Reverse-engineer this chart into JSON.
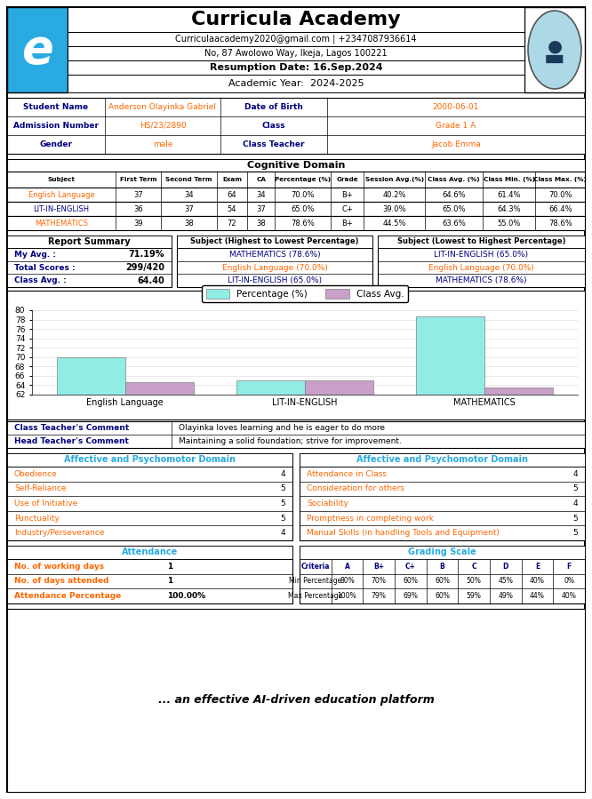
{
  "school_name": "Curricula Academy",
  "email": "Curriculaacademy2020@gmail.com | +2347087936614",
  "address": "No, 87 Awolowo Way, Ikeja, Lagos 100221",
  "resumption": "Resumption Date: 16.Sep.2024",
  "academic_year": "Academic Year:  2024-2025",
  "student_name": "Anderson Olayinka Gabriel",
  "dob": "2000-06-01",
  "admission": "HS/23/2890",
  "class_name": "Grade 1 A",
  "gender": "male",
  "class_teacher": "Jacob Emma",
  "subjects": [
    "English Language",
    "LIT-IN-ENGLISH",
    "MATHEMATICS"
  ],
  "first_term": [
    37,
    36,
    39
  ],
  "second_term": [
    34,
    37,
    38
  ],
  "exam": [
    64,
    54,
    72
  ],
  "ca": [
    34,
    37,
    38
  ],
  "percentage": [
    "70.0%",
    "65.0%",
    "78.6%"
  ],
  "grade": [
    "B+",
    "C+",
    "B+"
  ],
  "session_avg": [
    "40.2%",
    "39.0%",
    "44.5%"
  ],
  "class_avg": [
    "64.6%",
    "65.0%",
    "63.6%"
  ],
  "class_min": [
    "61.4%",
    "64.3%",
    "55.0%"
  ],
  "class_max": [
    "70.0%",
    "66.4%",
    "78.6%"
  ],
  "my_avg": "71.19%",
  "total_scores": "299/420",
  "class_avg_val": "64.40",
  "highest_subjects": [
    "MATHEMATICS (78.6%)",
    "English Language (70.0%)",
    "LIT-IN-ENGLISH (65.0%)"
  ],
  "lowest_subjects": [
    "LIT-IN-ENGLISH (65.0%)",
    "English Language (70.0%)",
    "MATHEMATICS (78.6%)"
  ],
  "bar_pct": [
    70.0,
    65.0,
    78.6
  ],
  "bar_cavg": [
    64.6,
    65.0,
    63.6
  ],
  "bar_color_pct": "#90EDE4",
  "bar_color_cavg": "#C8A0C8",
  "class_teacher_comment": "Olayinka loves learning and he is eager to do more",
  "head_teacher_comment": "Maintaining a solid foundation; strive for improvement.",
  "affective_left_labels": [
    "Obedience",
    "Self-Reliance",
    "Use of Initiative",
    "Punctuality",
    "Industry/Perseverance"
  ],
  "affective_left_values": [
    4,
    5,
    5,
    5,
    4
  ],
  "affective_right_labels": [
    "Attendance in Class",
    "Consideration for others",
    "Sociability",
    "Promptness in completing work",
    "Manual Skills (in handling Tools and Equipment)"
  ],
  "affective_right_values": [
    4,
    5,
    4,
    5,
    5
  ],
  "working_days": 1,
  "days_attended": 1,
  "attendance_pct": "100.00%",
  "grading_criteria": [
    "A",
    "B+",
    "C+",
    "B",
    "C",
    "D",
    "E",
    "F"
  ],
  "grading_min": [
    "80%",
    "70%",
    "60%",
    "60%",
    "50%",
    "45%",
    "40%",
    "0%"
  ],
  "grading_max": [
    "100%",
    "79%",
    "69%",
    "60%",
    "59%",
    "49%",
    "44%",
    "40%"
  ],
  "footer": "... an effective AI-driven education platform",
  "header_bg": "#29ABE2",
  "label_color": "#000080",
  "value_color": "#FF6600",
  "subject_color_0": "#FF6600",
  "subject_color_1": "#000080",
  "subject_color_2": "#FF6600",
  "highest_colors": [
    "#000080",
    "#FF6600",
    "#000080"
  ],
  "lowest_colors": [
    "#000080",
    "#FF6600",
    "#000080"
  ]
}
